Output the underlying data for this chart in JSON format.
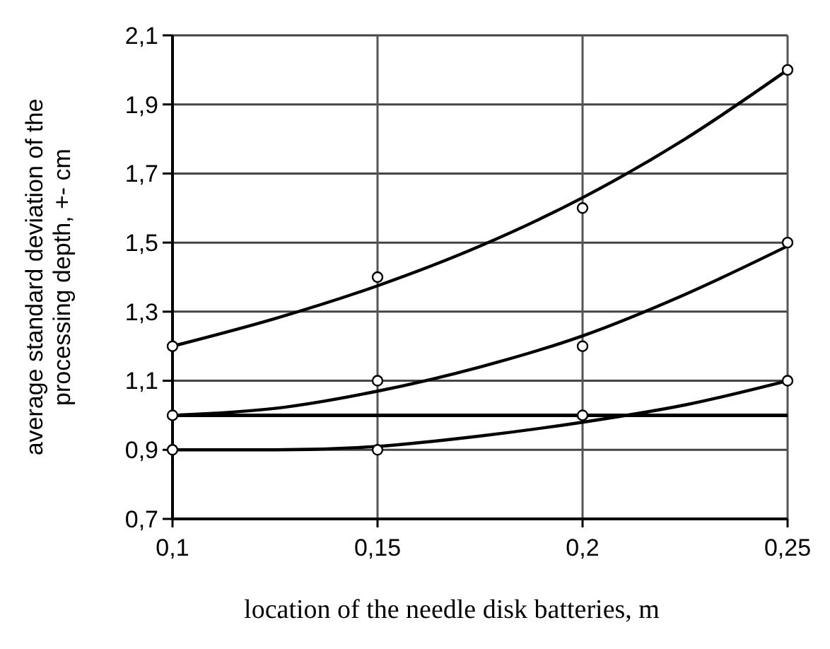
{
  "chart_data": {
    "type": "line",
    "xlabel": "location of the needle disk batteries, m",
    "ylabel": "average standard deviation of the\nprocessing depth, +- cm",
    "xlim": [
      0.1,
      0.25
    ],
    "xticks": [
      {
        "value": 0.1,
        "label": "0,1"
      },
      {
        "value": 0.15,
        "label": "0,15"
      },
      {
        "value": 0.2,
        "label": "0,2"
      },
      {
        "value": 0.25,
        "label": "0,25"
      }
    ],
    "ylim": [
      0.7,
      2.1
    ],
    "yticks": [
      {
        "value": 0.7,
        "label": "0,7"
      },
      {
        "value": 0.9,
        "label": "0,9"
      },
      {
        "value": 1.1,
        "label": "1,1"
      },
      {
        "value": 1.3,
        "label": "1,3"
      },
      {
        "value": 1.5,
        "label": "1,5"
      },
      {
        "value": 1.7,
        "label": "1,7"
      },
      {
        "value": 1.9,
        "label": "1,9"
      },
      {
        "value": 2.1,
        "label": "2,1"
      }
    ],
    "grid": true,
    "line_style": "solid",
    "ref_lines": [
      {
        "axis": "y",
        "value": 1.0,
        "color": "#000000"
      }
    ],
    "series": [
      {
        "color": "#000000",
        "marker": "none",
        "x": [
          0.1,
          0.125,
          0.15,
          0.175,
          0.2,
          0.225,
          0.25
        ],
        "values": [
          1.2,
          1.28,
          1.375,
          1.49,
          1.63,
          1.8,
          2.0
        ]
      },
      {
        "color": "#000000",
        "marker": "none",
        "x": [
          0.1,
          0.125,
          0.15,
          0.175,
          0.2,
          0.225,
          0.25
        ],
        "values": [
          1.0,
          1.02,
          1.07,
          1.14,
          1.23,
          1.35,
          1.49
        ]
      },
      {
        "color": "#000000",
        "marker": "none",
        "x": [
          0.1,
          0.125,
          0.15,
          0.175,
          0.2,
          0.225,
          0.25
        ],
        "values": [
          0.9,
          0.9,
          0.91,
          0.94,
          0.98,
          1.03,
          1.1
        ]
      },
      {
        "type": "scatter",
        "color": "#000000",
        "marker": "circle",
        "x": [
          0.1,
          0.15,
          0.2,
          0.25
        ],
        "values": [
          1.2,
          1.4,
          1.6,
          2.0
        ]
      },
      {
        "type": "scatter",
        "color": "#000000",
        "marker": "circle",
        "x": [
          0.1,
          0.15,
          0.2,
          0.25
        ],
        "values": [
          1.0,
          1.1,
          1.2,
          1.5
        ]
      },
      {
        "type": "scatter",
        "color": "#000000",
        "marker": "circle",
        "x": [
          0.1,
          0.15,
          0.2,
          0.25
        ],
        "values": [
          0.9,
          0.9,
          1.0,
          1.1
        ]
      }
    ]
  }
}
